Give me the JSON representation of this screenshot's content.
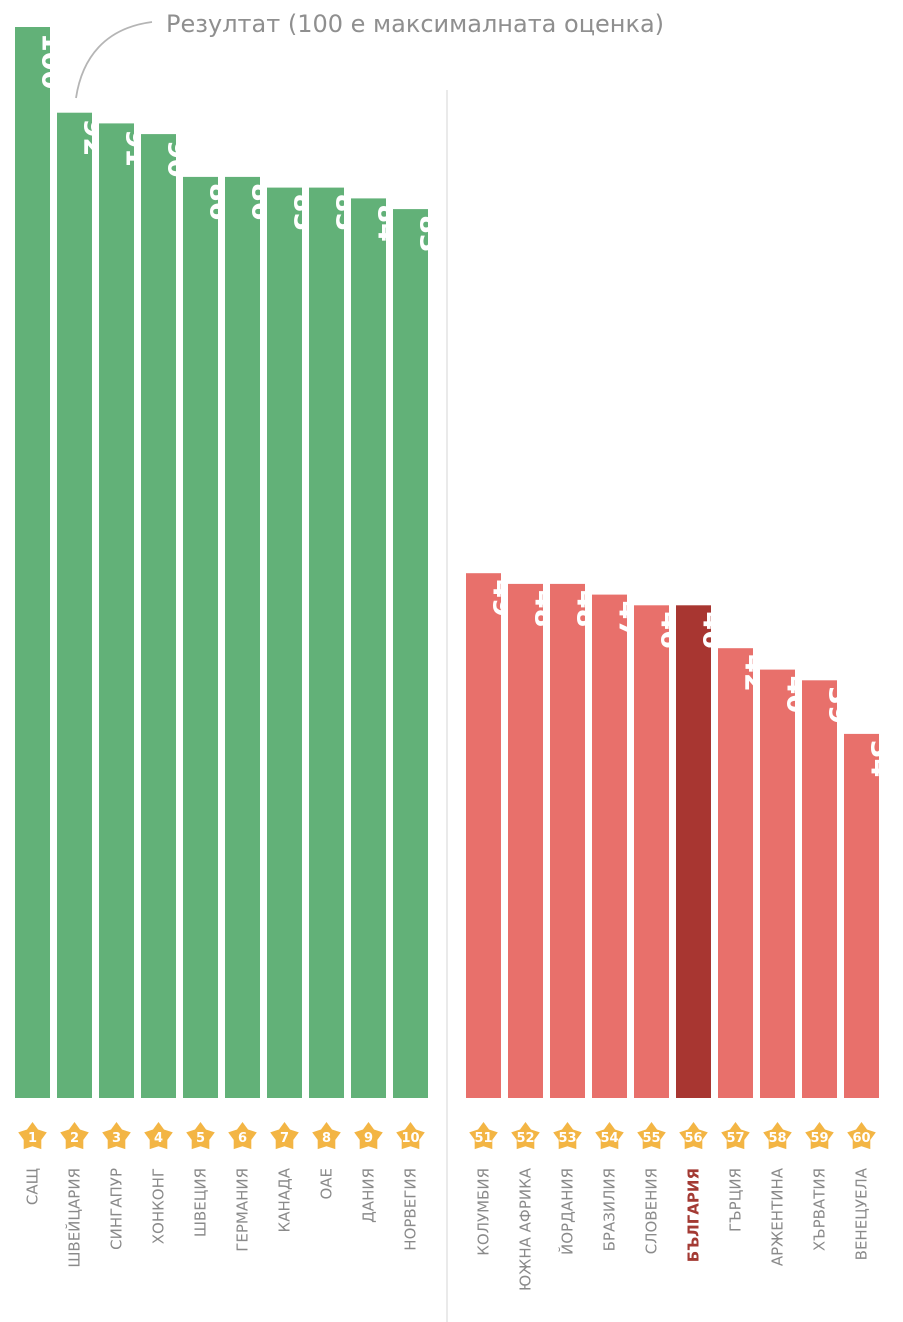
{
  "annotation": "Резултат (100 е максималната оценка)",
  "colors": {
    "top": "#62b178",
    "bottom": "#e8706b",
    "highlight": "#a83631",
    "star": "#f3b544",
    "divider": "#e3e3e3",
    "label_gray": "#8a8a8a"
  },
  "chart_data": {
    "type": "bar",
    "ylim": [
      0,
      100
    ],
    "groups": [
      {
        "name": "",
        "color": "#62b178",
        "ranks": [
          "1",
          "2",
          "3",
          "4",
          "5",
          "6",
          "7",
          "8",
          "9",
          "10"
        ],
        "categories": [
          "САЩ",
          "ШВЕЙЦАРИЯ",
          "СИНГАПУР",
          "ХОНКОНГ",
          "ШВЕЦИЯ",
          "ГЕРМАНИЯ",
          "КАНАДА",
          "ОАЕ",
          "ДАНИЯ",
          "НОРВЕГИЯ"
        ],
        "values": [
          100,
          92,
          91,
          90,
          86,
          86,
          85,
          85,
          84,
          83
        ]
      },
      {
        "name": "",
        "color": "#e8706b",
        "ranks": [
          "51",
          "52",
          "53",
          "54",
          "55",
          "56",
          "57",
          "58",
          "59",
          "60"
        ],
        "categories": [
          "КОЛУМБИЯ",
          "ЮЖНА АФРИКА",
          "ЙОРДАНИЯ",
          "БРАЗИЛИЯ",
          "СЛОВЕНИЯ",
          "БЪЛГАРИЯ",
          "ГЪРЦИЯ",
          "АРЖЕНТИНА",
          "ХЪРВАТИЯ",
          "ВЕНЕЦУЕЛА"
        ],
        "values": [
          49,
          48,
          48,
          47,
          46,
          46,
          42,
          40,
          39,
          34
        ]
      }
    ],
    "highlight": "БЪЛГАРИЯ"
  }
}
